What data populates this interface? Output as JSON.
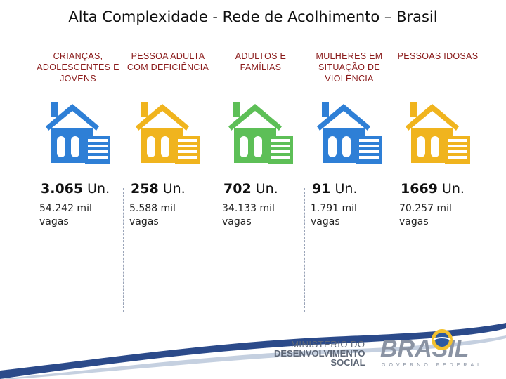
{
  "title": "Alta Complexidade -  Rede de Acolhimento – Brasil",
  "columns": [
    {
      "category": "CRIANÇAS, ADOLESCENTES E JOVENS",
      "units_num": "3.065",
      "units_suffix": " Un.",
      "vagas": "54.242 mil vagas",
      "house_color": "#2e7fd6"
    },
    {
      "category": "PESSOA ADULTA COM DEFICIÊNCIA",
      "units_num": "258",
      "units_suffix": " Un.",
      "vagas": "5.588 mil vagas",
      "house_color": "#f0b41e"
    },
    {
      "category": "ADULTOS E FAMÍLIAS",
      "units_num": "702",
      "units_suffix": " Un.",
      "vagas": "34.133 mil vagas",
      "house_color": "#5dbf57"
    },
    {
      "category": "MULHERES EM SITUAÇÃO DE VIOLÊNCIA",
      "units_num": "91",
      "units_suffix": " Un.",
      "vagas": "1.791 mil vagas",
      "house_color": "#2e7fd6"
    },
    {
      "category": "PESSOAS IDOSAS",
      "units_num": "1669",
      "units_suffix": " Un.",
      "vagas": "70.257 mil vagas",
      "house_color": "#f0b41e"
    }
  ],
  "footer": {
    "ministry_line1": "MINISTÉRIO DO",
    "ministry_line2": "DESENVOLVIMENTO",
    "ministry_line3": "SOCIAL",
    "logo_text": "BRASIL",
    "logo_subtext": "GOVERNO FEDERAL"
  },
  "colors": {
    "category_text": "#8a1a1a",
    "swoosh_blue": "#2b4a8a"
  },
  "icons": [
    "house-icon"
  ]
}
